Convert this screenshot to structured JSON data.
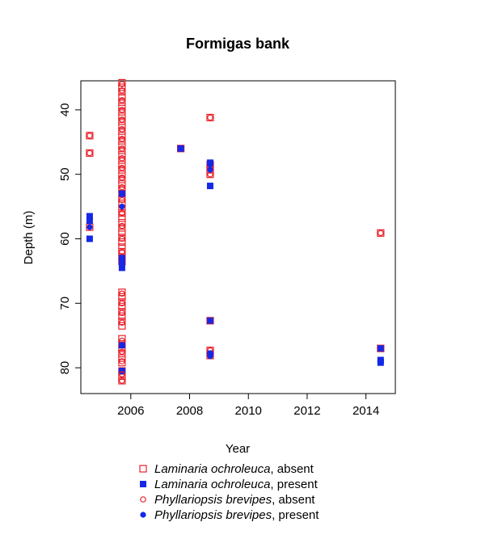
{
  "chart_data": {
    "type": "scatter",
    "title": "Formigas bank",
    "xlabel": "Year",
    "ylabel": "Depth (m)",
    "xlim": [
      2004.3,
      2015.0
    ],
    "ylim": [
      84.0,
      35.5
    ],
    "y_reversed": true,
    "x_ticks": [
      2006,
      2008,
      2010,
      2012,
      2014
    ],
    "y_ticks": [
      40,
      50,
      60,
      70,
      80
    ],
    "grid": false,
    "legend_position": "bottom",
    "colors": {
      "absent": "#e8202a",
      "present": "#1428e6"
    },
    "series": [
      {
        "name": "Laminaria ochroleuca, absent",
        "legend_italic": "Laminaria ochroleuca",
        "legend_suffix": ", absent",
        "marker": "open-square",
        "color": "#e8202a",
        "points": [
          [
            2004.6,
            44.0
          ],
          [
            2004.6,
            46.7
          ],
          [
            2004.6,
            58.2
          ],
          [
            2005.7,
            35.8
          ],
          [
            2005.7,
            36.5
          ],
          [
            2005.7,
            37.2
          ],
          [
            2005.7,
            38.0
          ],
          [
            2005.7,
            38.8
          ],
          [
            2005.7,
            39.5
          ],
          [
            2005.7,
            40.3
          ],
          [
            2005.7,
            41.0
          ],
          [
            2005.7,
            41.8
          ],
          [
            2005.7,
            42.5
          ],
          [
            2005.7,
            43.3
          ],
          [
            2005.7,
            44.0
          ],
          [
            2005.7,
            44.8
          ],
          [
            2005.7,
            45.5
          ],
          [
            2005.7,
            46.3
          ],
          [
            2005.7,
            47.0
          ],
          [
            2005.7,
            47.8
          ],
          [
            2005.7,
            48.5
          ],
          [
            2005.7,
            49.3
          ],
          [
            2005.7,
            50.0
          ],
          [
            2005.7,
            50.8
          ],
          [
            2005.7,
            51.5
          ],
          [
            2005.7,
            52.3
          ],
          [
            2005.7,
            53.0
          ],
          [
            2005.7,
            53.8
          ],
          [
            2005.7,
            54.5
          ],
          [
            2005.7,
            55.3
          ],
          [
            2005.7,
            56.0
          ],
          [
            2005.7,
            56.8
          ],
          [
            2005.7,
            57.5
          ],
          [
            2005.7,
            58.3
          ],
          [
            2005.7,
            59.0
          ],
          [
            2005.7,
            59.8
          ],
          [
            2005.7,
            60.5
          ],
          [
            2005.7,
            61.3
          ],
          [
            2005.7,
            62.0
          ],
          [
            2005.7,
            62.8
          ],
          [
            2005.7,
            63.5
          ],
          [
            2005.7,
            68.3
          ],
          [
            2005.7,
            69.0
          ],
          [
            2005.7,
            69.8
          ],
          [
            2005.7,
            70.5
          ],
          [
            2005.7,
            71.3
          ],
          [
            2005.7,
            72.0
          ],
          [
            2005.7,
            72.8
          ],
          [
            2005.7,
            73.5
          ],
          [
            2005.7,
            75.5
          ],
          [
            2005.7,
            76.3
          ],
          [
            2005.7,
            77.0
          ],
          [
            2005.7,
            77.8
          ],
          [
            2005.7,
            78.5
          ],
          [
            2005.7,
            79.2
          ],
          [
            2005.7,
            80.5
          ],
          [
            2005.7,
            81.3
          ],
          [
            2005.7,
            82.0
          ],
          [
            2007.7,
            46.0
          ],
          [
            2008.7,
            41.2
          ],
          [
            2008.7,
            48.5
          ],
          [
            2008.7,
            49.3
          ],
          [
            2008.7,
            50.0
          ],
          [
            2008.7,
            72.7
          ],
          [
            2008.7,
            77.3
          ],
          [
            2008.7,
            78.1
          ],
          [
            2014.5,
            59.1
          ],
          [
            2014.5,
            77.0
          ]
        ]
      },
      {
        "name": "Laminaria ochroleuca, present",
        "legend_italic": "Laminaria ochroleuca",
        "legend_suffix": ", present",
        "marker": "filled-square",
        "color": "#1428e6",
        "points": [
          [
            2004.6,
            56.5
          ],
          [
            2004.6,
            57.2
          ],
          [
            2004.6,
            60.0
          ],
          [
            2005.7,
            53.0
          ],
          [
            2005.7,
            63.0
          ],
          [
            2005.7,
            63.8
          ],
          [
            2005.7,
            64.5
          ],
          [
            2005.7,
            76.5
          ],
          [
            2005.7,
            80.5
          ],
          [
            2007.7,
            46.0
          ],
          [
            2008.7,
            48.2
          ],
          [
            2008.7,
            51.8
          ],
          [
            2008.7,
            72.7
          ],
          [
            2008.7,
            77.8
          ],
          [
            2014.5,
            77.0
          ],
          [
            2014.5,
            78.8
          ],
          [
            2014.5,
            79.2
          ]
        ]
      },
      {
        "name": "Phyllariopsis brevipes, absent",
        "legend_italic": "Phyllariopsis brevipes",
        "legend_suffix": ", absent",
        "marker": "open-circle",
        "color": "#e8202a",
        "points": [
          [
            2004.6,
            44.0
          ],
          [
            2004.6,
            46.7
          ],
          [
            2005.7,
            36.0
          ],
          [
            2005.7,
            37.0
          ],
          [
            2005.7,
            38.5
          ],
          [
            2005.7,
            40.0
          ],
          [
            2005.7,
            41.5
          ],
          [
            2005.7,
            43.0
          ],
          [
            2005.7,
            44.5
          ],
          [
            2005.7,
            46.0
          ],
          [
            2005.7,
            47.5
          ],
          [
            2005.7,
            49.0
          ],
          [
            2005.7,
            50.5
          ],
          [
            2005.7,
            52.0
          ],
          [
            2005.7,
            54.0
          ],
          [
            2005.7,
            56.0
          ],
          [
            2005.7,
            58.0
          ],
          [
            2005.7,
            60.0
          ],
          [
            2005.7,
            62.0
          ],
          [
            2005.7,
            68.5
          ],
          [
            2005.7,
            70.0
          ],
          [
            2005.7,
            71.5
          ],
          [
            2005.7,
            73.0
          ],
          [
            2005.7,
            75.8
          ],
          [
            2005.7,
            77.5
          ],
          [
            2005.7,
            79.0
          ],
          [
            2005.7,
            81.0
          ],
          [
            2005.7,
            82.0
          ],
          [
            2008.7,
            41.2
          ],
          [
            2008.7,
            49.0
          ],
          [
            2008.7,
            50.0
          ],
          [
            2008.7,
            72.7
          ],
          [
            2008.7,
            77.3
          ],
          [
            2008.7,
            78.1
          ],
          [
            2014.5,
            59.1
          ],
          [
            2014.5,
            77.0
          ]
        ]
      },
      {
        "name": "Phyllariopsis brevipes, present",
        "legend_italic": "Phyllariopsis brevipes",
        "legend_suffix": ", present",
        "marker": "filled-circle",
        "color": "#1428e6",
        "points": [
          [
            2004.6,
            56.5
          ],
          [
            2004.6,
            58.2
          ],
          [
            2004.6,
            60.0
          ],
          [
            2005.7,
            55.0
          ],
          [
            2005.7,
            63.5
          ],
          [
            2005.7,
            76.5
          ],
          [
            2007.7,
            46.0
          ],
          [
            2008.7,
            48.5
          ],
          [
            2008.7,
            49.3
          ],
          [
            2008.7,
            51.8
          ],
          [
            2008.7,
            72.7
          ],
          [
            2008.7,
            77.8
          ],
          [
            2008.7,
            78.2
          ],
          [
            2014.5,
            77.0
          ],
          [
            2014.5,
            79.0
          ]
        ]
      }
    ]
  }
}
